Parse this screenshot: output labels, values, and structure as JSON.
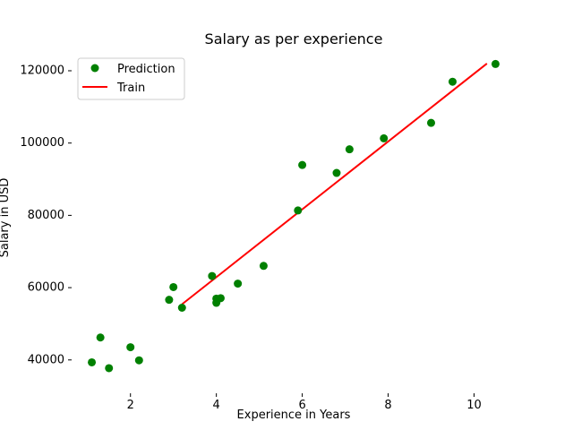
{
  "chart_data": {
    "type": "scatter",
    "title": "Salary as per experience",
    "xlabel": "Experience in Years",
    "ylabel": "Salary in USD",
    "xlim": [
      0.63,
      10.97
    ],
    "ylim": [
      34000,
      125200
    ],
    "xticks": [
      2,
      4,
      6,
      8,
      10
    ],
    "xtick_labels": [
      "2",
      "4",
      "6",
      "8",
      "10"
    ],
    "yticks": [
      40000,
      60000,
      80000,
      100000,
      120000
    ],
    "ytick_labels": [
      "40000",
      "60000",
      "80000",
      "100000",
      "120000"
    ],
    "grid": false,
    "legend_position": "top-left",
    "series": [
      {
        "name": "Prediction",
        "kind": "scatter",
        "color": "#008000",
        "points": [
          [
            1.1,
            39343
          ],
          [
            1.3,
            46205
          ],
          [
            1.5,
            37731
          ],
          [
            2.0,
            43525
          ],
          [
            2.2,
            39891
          ],
          [
            2.9,
            56642
          ],
          [
            3.0,
            60150
          ],
          [
            3.2,
            54445
          ],
          [
            3.9,
            63218
          ],
          [
            4.0,
            55794
          ],
          [
            4.0,
            56957
          ],
          [
            4.1,
            57081
          ],
          [
            4.5,
            61111
          ],
          [
            5.1,
            66029
          ],
          [
            5.9,
            81363
          ],
          [
            6.0,
            93940
          ],
          [
            6.8,
            91738
          ],
          [
            7.1,
            98273
          ],
          [
            7.9,
            101302
          ],
          [
            9.0,
            105582
          ],
          [
            9.5,
            116969
          ],
          [
            10.5,
            121872
          ]
        ]
      },
      {
        "name": "Train",
        "kind": "line",
        "color": "#ff0000",
        "x": [
          3.2,
          10.3
        ],
        "y": [
          55400,
          122000
        ]
      }
    ]
  }
}
